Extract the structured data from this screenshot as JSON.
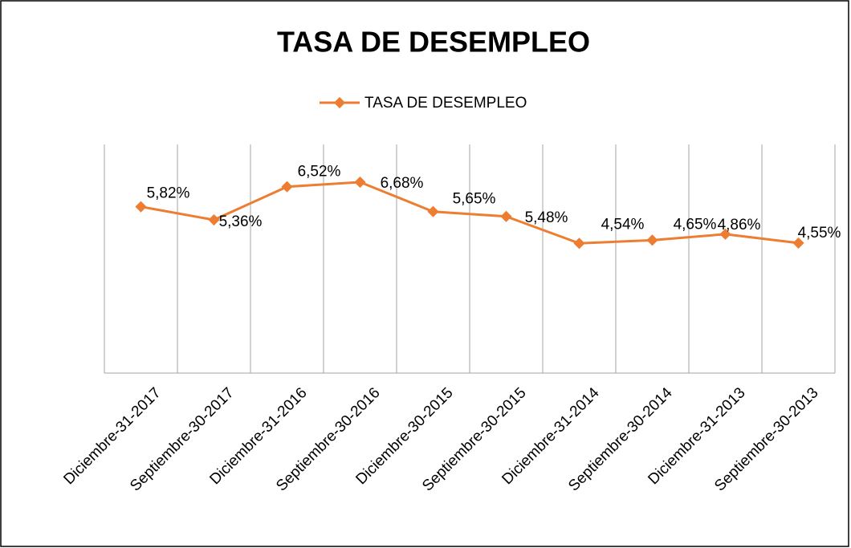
{
  "chart_data": {
    "type": "line",
    "title": "TASA DE DESEMPLEO",
    "categories": [
      "Diciembre-31-2017",
      "Septiembre-30-2017",
      "Diciembre-31-2016",
      "Septiembre-30-2016",
      "Diciembre-30-2015",
      "Septiembre-30-2015",
      "Diciembre-31-2014",
      "Septiembre-30-2014",
      "Diciembre-31-2013",
      "Septiembre-30-2013"
    ],
    "series": [
      {
        "name": "TASA DE DESEMPLEO",
        "color": "#ed7d31",
        "values": [
          5.82,
          5.36,
          6.52,
          6.68,
          5.65,
          5.48,
          4.54,
          4.65,
          4.86,
          4.55
        ],
        "value_labels": [
          "5,82%",
          "5,36%",
          "6,52%",
          "6,68%",
          "5,65%",
          "5,48%",
          "4,54%",
          "4,65%",
          "4,86%",
          "4,55%"
        ]
      }
    ],
    "ylim": [
      0,
      8
    ],
    "legend": "top",
    "grid": true
  }
}
